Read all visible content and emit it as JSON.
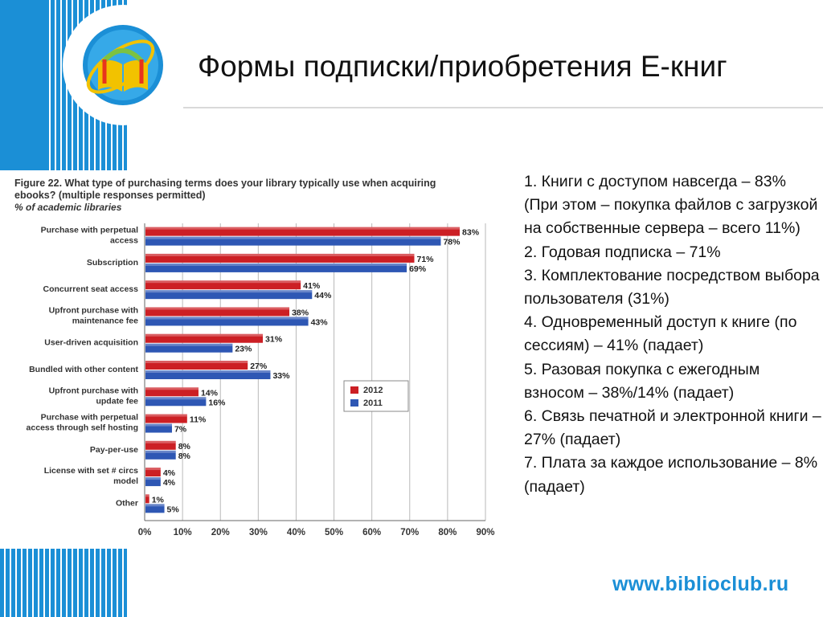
{
  "slide_title": "Формы подписки/приобретения Е-книг",
  "website": "www.biblioclub.ru",
  "colors": {
    "accent": "#1b8fd6",
    "series_2012": "#cc1f24",
    "series_2011": "#2e57b4"
  },
  "icons": {
    "logo": "open-book-logo-icon"
  },
  "notes": [
    "1. Книги с доступом навсегда – 83%",
    "(При этом – покупка файлов с загрузкой на собственные сервера – всего 11%)",
    "2. Годовая подписка – 71%",
    "3. Комплектование посредством выбора пользователя (31%)",
    "4. Одновременный доступ к книге (по сессиям) – 41% (падает)",
    "5. Разовая покупка с ежегодным взносом – 38%/14% (падает)",
    "6. Связь печатной и электронной книги – 27% (падает)",
    "7. Плата за каждое использование – 8% (падает)"
  ],
  "chart_data": {
    "type": "bar",
    "orientation": "horizontal",
    "title": "Figure 22. What type of purchasing terms does your library typically use when acquiring ebooks? (multiple responses permitted)",
    "subtitle": "% of academic libraries",
    "categories": [
      [
        "Purchase with perpetual",
        "access"
      ],
      [
        "Subscription"
      ],
      [
        "Concurrent seat access"
      ],
      [
        "Upfront purchase with",
        "maintenance fee"
      ],
      [
        "User-driven acquisition"
      ],
      [
        "Bundled with other content"
      ],
      [
        "Upfront purchase with",
        "update fee"
      ],
      [
        "Purchase with perpetual",
        "access through self hosting"
      ],
      [
        "Pay-per-use"
      ],
      [
        "License with set # circs",
        "model"
      ],
      [
        "Other"
      ]
    ],
    "series": [
      {
        "name": "2012",
        "values": [
          83,
          71,
          41,
          38,
          31,
          27,
          14,
          11,
          8,
          4,
          1
        ]
      },
      {
        "name": "2011",
        "values": [
          78,
          69,
          44,
          43,
          23,
          33,
          16,
          7,
          8,
          4,
          5
        ]
      }
    ],
    "xlim": [
      0,
      90
    ],
    "xticks": [
      "0%",
      "10%",
      "20%",
      "30%",
      "40%",
      "50%",
      "60%",
      "70%",
      "80%",
      "90%"
    ],
    "value_suffix": "%",
    "legend_position": "right",
    "grid": "vertical"
  }
}
